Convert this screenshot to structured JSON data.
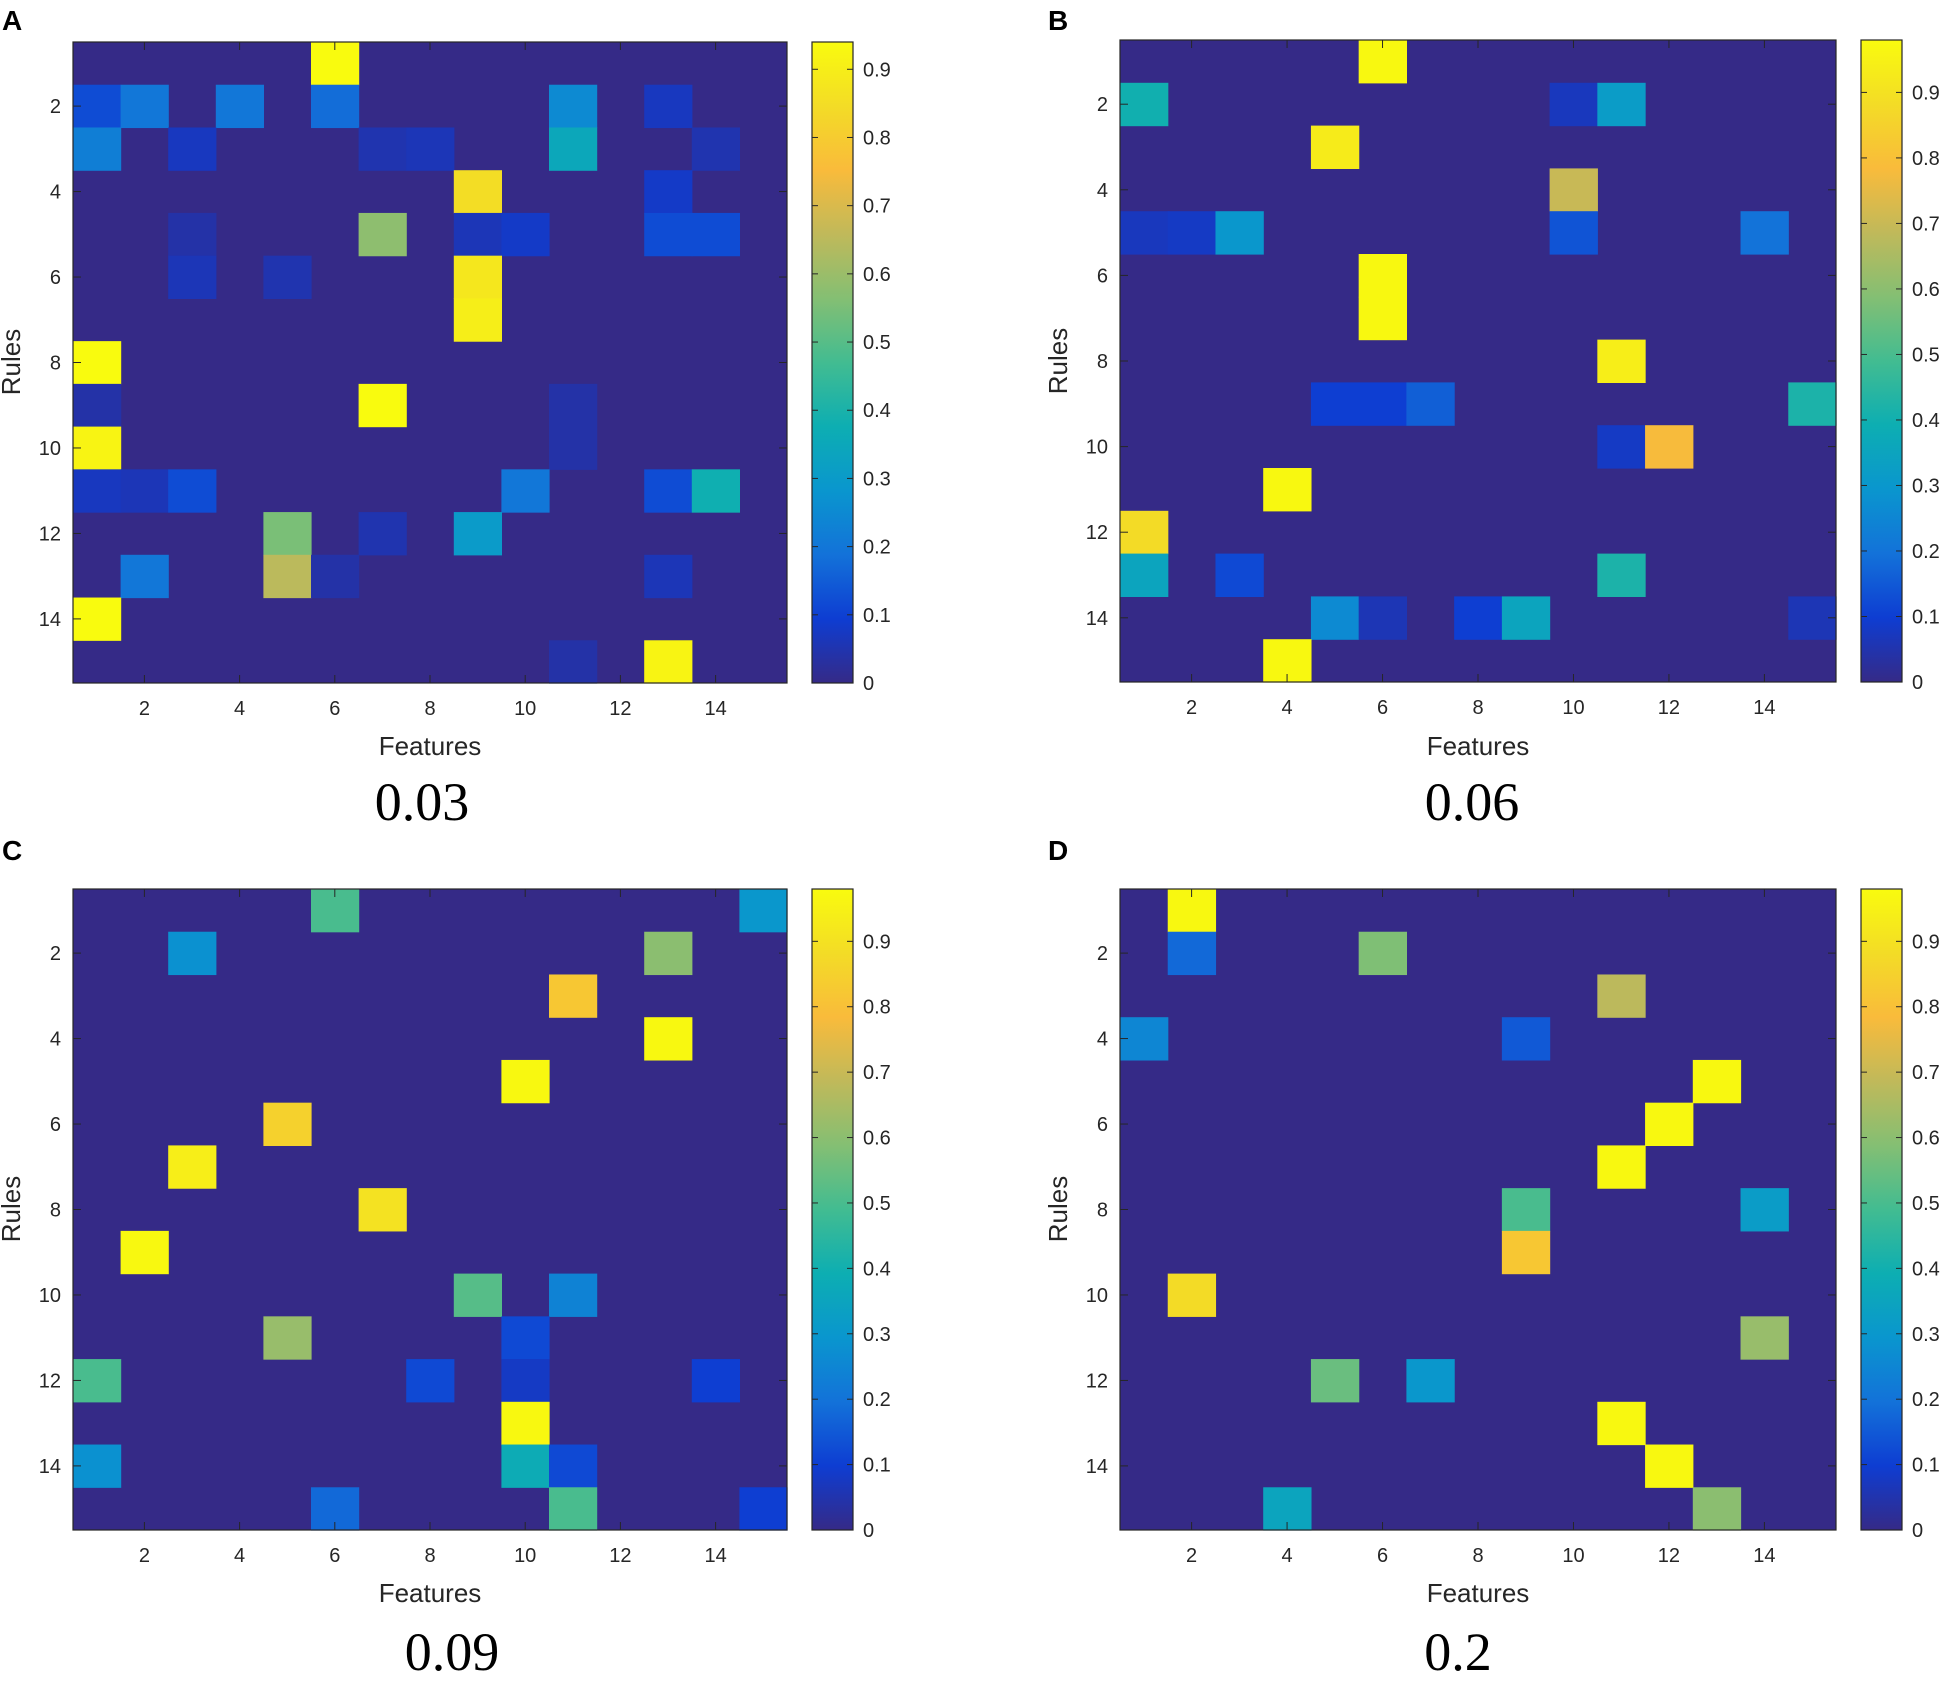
{
  "chart_data": [
    {
      "type": "heatmap",
      "panel_label": "A",
      "caption": "0.03",
      "xlabel": "Features",
      "ylabel": "Rules",
      "x_ticks": [
        "2",
        "4",
        "6",
        "8",
        "10",
        "12",
        "14"
      ],
      "y_ticks": [
        "2",
        "4",
        "6",
        "8",
        "10",
        "12",
        "14"
      ],
      "colorbar_ticks": [
        "0",
        "0.1",
        "0.2",
        "0.3",
        "0.4",
        "0.5",
        "0.6",
        "0.7",
        "0.8",
        "0.9"
      ],
      "vmin": 0,
      "vmax": 0.94,
      "rows": 15,
      "cols": 15,
      "cells": [
        [
          1,
          6,
          0.94
        ],
        [
          2,
          1,
          0.12
        ],
        [
          2,
          2,
          0.2
        ],
        [
          2,
          4,
          0.2
        ],
        [
          2,
          6,
          0.18
        ],
        [
          2,
          11,
          0.25
        ],
        [
          2,
          13,
          0.07
        ],
        [
          3,
          1,
          0.22
        ],
        [
          3,
          3,
          0.07
        ],
        [
          3,
          7,
          0.05
        ],
        [
          3,
          8,
          0.06
        ],
        [
          3,
          11,
          0.35
        ],
        [
          3,
          14,
          0.05
        ],
        [
          4,
          9,
          0.85
        ],
        [
          4,
          13,
          0.08
        ],
        [
          5,
          3,
          0.04
        ],
        [
          5,
          7,
          0.58
        ],
        [
          5,
          9,
          0.06
        ],
        [
          5,
          10,
          0.08
        ],
        [
          5,
          13,
          0.12
        ],
        [
          5,
          14,
          0.12
        ],
        [
          6,
          3,
          0.06
        ],
        [
          6,
          5,
          0.05
        ],
        [
          6,
          9,
          0.88
        ],
        [
          7,
          9,
          0.9
        ],
        [
          8,
          1,
          0.94
        ],
        [
          9,
          1,
          0.04
        ],
        [
          9,
          7,
          0.94
        ],
        [
          9,
          11,
          0.04
        ],
        [
          10,
          1,
          0.92
        ],
        [
          10,
          11,
          0.04
        ],
        [
          11,
          1,
          0.07
        ],
        [
          11,
          2,
          0.06
        ],
        [
          11,
          3,
          0.12
        ],
        [
          11,
          10,
          0.2
        ],
        [
          11,
          13,
          0.12
        ],
        [
          11,
          14,
          0.38
        ],
        [
          12,
          5,
          0.55
        ],
        [
          12,
          7,
          0.05
        ],
        [
          12,
          9,
          0.3
        ],
        [
          13,
          2,
          0.2
        ],
        [
          13,
          5,
          0.65
        ],
        [
          13,
          6,
          0.04
        ],
        [
          13,
          13,
          0.06
        ],
        [
          14,
          1,
          0.94
        ],
        [
          15,
          11,
          0.04
        ],
        [
          15,
          13,
          0.92
        ]
      ]
    },
    {
      "type": "heatmap",
      "panel_label": "B",
      "caption": "0.06",
      "xlabel": "Features",
      "ylabel": "Rules",
      "x_ticks": [
        "2",
        "4",
        "6",
        "8",
        "10",
        "12",
        "14"
      ],
      "y_ticks": [
        "2",
        "4",
        "6",
        "8",
        "10",
        "12",
        "14"
      ],
      "colorbar_ticks": [
        "0",
        "0.1",
        "0.2",
        "0.3",
        "0.4",
        "0.5",
        "0.6",
        "0.7",
        "0.8",
        "0.9"
      ],
      "vmin": 0,
      "vmax": 0.98,
      "rows": 15,
      "cols": 15,
      "cells": [
        [
          1,
          6,
          0.97
        ],
        [
          2,
          1,
          0.4
        ],
        [
          2,
          10,
          0.07
        ],
        [
          2,
          11,
          0.32
        ],
        [
          3,
          5,
          0.93
        ],
        [
          4,
          10,
          0.7
        ],
        [
          5,
          1,
          0.07
        ],
        [
          5,
          2,
          0.08
        ],
        [
          5,
          3,
          0.3
        ],
        [
          5,
          10,
          0.14
        ],
        [
          5,
          14,
          0.2
        ],
        [
          6,
          6,
          0.97
        ],
        [
          7,
          6,
          0.97
        ],
        [
          8,
          11,
          0.94
        ],
        [
          9,
          5,
          0.1
        ],
        [
          9,
          6,
          0.1
        ],
        [
          9,
          7,
          0.16
        ],
        [
          9,
          15,
          0.42
        ],
        [
          10,
          11,
          0.08
        ],
        [
          10,
          12,
          0.78
        ],
        [
          11,
          4,
          0.97
        ],
        [
          12,
          1,
          0.88
        ],
        [
          13,
          1,
          0.35
        ],
        [
          13,
          3,
          0.12
        ],
        [
          13,
          11,
          0.42
        ],
        [
          14,
          5,
          0.26
        ],
        [
          14,
          6,
          0.06
        ],
        [
          14,
          8,
          0.1
        ],
        [
          14,
          9,
          0.35
        ],
        [
          14,
          15,
          0.06
        ],
        [
          15,
          4,
          0.97
        ]
      ]
    },
    {
      "type": "heatmap",
      "panel_label": "C",
      "caption": "0.09",
      "xlabel": "Features",
      "ylabel": "Rules",
      "x_ticks": [
        "2",
        "4",
        "6",
        "8",
        "10",
        "12",
        "14"
      ],
      "y_ticks": [
        "2",
        "4",
        "6",
        "8",
        "10",
        "12",
        "14"
      ],
      "colorbar_ticks": [
        "0",
        "0.1",
        "0.2",
        "0.3",
        "0.4",
        "0.5",
        "0.6",
        "0.7",
        "0.8",
        "0.9"
      ],
      "vmin": 0,
      "vmax": 0.98,
      "rows": 15,
      "cols": 15,
      "cells": [
        [
          1,
          6,
          0.5
        ],
        [
          1,
          15,
          0.3
        ],
        [
          2,
          3,
          0.28
        ],
        [
          2,
          13,
          0.6
        ],
        [
          3,
          11,
          0.82
        ],
        [
          4,
          13,
          0.97
        ],
        [
          5,
          10,
          0.97
        ],
        [
          6,
          5,
          0.85
        ],
        [
          7,
          3,
          0.94
        ],
        [
          8,
          7,
          0.9
        ],
        [
          9,
          2,
          0.97
        ],
        [
          10,
          9,
          0.52
        ],
        [
          10,
          11,
          0.24
        ],
        [
          11,
          5,
          0.62
        ],
        [
          11,
          10,
          0.12
        ],
        [
          12,
          1,
          0.5
        ],
        [
          12,
          8,
          0.12
        ],
        [
          12,
          10,
          0.08
        ],
        [
          12,
          14,
          0.1
        ],
        [
          13,
          10,
          0.97
        ],
        [
          14,
          1,
          0.28
        ],
        [
          14,
          10,
          0.38
        ],
        [
          14,
          11,
          0.12
        ],
        [
          15,
          6,
          0.18
        ],
        [
          15,
          11,
          0.5
        ],
        [
          15,
          15,
          0.1
        ]
      ]
    },
    {
      "type": "heatmap",
      "panel_label": "D",
      "caption": "0.2",
      "xlabel": "Features",
      "ylabel": "Rules",
      "x_ticks": [
        "2",
        "4",
        "6",
        "8",
        "10",
        "12",
        "14"
      ],
      "y_ticks": [
        "2",
        "4",
        "6",
        "8",
        "10",
        "12",
        "14"
      ],
      "colorbar_ticks": [
        "0",
        "0.1",
        "0.2",
        "0.3",
        "0.4",
        "0.5",
        "0.6",
        "0.7",
        "0.8",
        "0.9"
      ],
      "vmin": 0,
      "vmax": 0.98,
      "rows": 15,
      "cols": 15,
      "cells": [
        [
          1,
          2,
          0.97
        ],
        [
          2,
          2,
          0.18
        ],
        [
          2,
          6,
          0.58
        ],
        [
          3,
          11,
          0.68
        ],
        [
          4,
          1,
          0.25
        ],
        [
          4,
          9,
          0.15
        ],
        [
          5,
          13,
          0.97
        ],
        [
          6,
          12,
          0.97
        ],
        [
          7,
          11,
          0.97
        ],
        [
          8,
          9,
          0.5
        ],
        [
          8,
          14,
          0.32
        ],
        [
          9,
          9,
          0.82
        ],
        [
          10,
          2,
          0.88
        ],
        [
          11,
          14,
          0.62
        ],
        [
          12,
          5,
          0.55
        ],
        [
          12,
          7,
          0.3
        ],
        [
          13,
          11,
          0.97
        ],
        [
          14,
          12,
          0.97
        ],
        [
          15,
          4,
          0.35
        ],
        [
          15,
          13,
          0.6
        ]
      ]
    }
  ]
}
